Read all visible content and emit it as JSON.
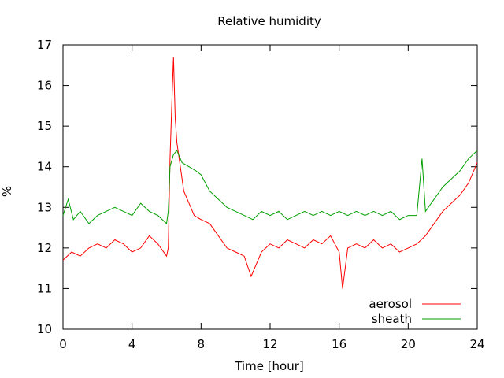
{
  "chart_data": {
    "type": "line",
    "title": "Relative humidity",
    "xlabel": "Time [hour]",
    "ylabel": "%",
    "xlim": [
      0,
      24
    ],
    "ylim": [
      10,
      17
    ],
    "xticks": [
      "0",
      "4",
      "8",
      "12",
      "16",
      "20",
      "24"
    ],
    "yticks": [
      "10",
      "11",
      "12",
      "13",
      "14",
      "15",
      "16",
      "17"
    ],
    "grid": false,
    "legend_position": "bottom-right",
    "series": [
      {
        "name": "aerosol",
        "color": "#ff0000",
        "x": [
          0.0,
          0.5,
          1.0,
          1.5,
          2.0,
          2.5,
          3.0,
          3.5,
          4.0,
          4.5,
          5.0,
          5.5,
          6.0,
          6.1,
          6.2,
          6.3,
          6.4,
          6.5,
          6.6,
          6.8,
          7.0,
          7.3,
          7.6,
          8.0,
          8.5,
          9.0,
          9.5,
          10.0,
          10.5,
          10.9,
          11.5,
          12.0,
          12.5,
          13.0,
          13.5,
          14.0,
          14.5,
          15.0,
          15.5,
          16.0,
          16.2,
          16.5,
          17.0,
          17.5,
          18.0,
          18.5,
          19.0,
          19.5,
          20.0,
          20.5,
          21.0,
          21.5,
          22.0,
          22.5,
          23.0,
          23.5,
          24.0
        ],
        "values": [
          11.7,
          11.9,
          11.8,
          12.0,
          12.1,
          12.0,
          12.2,
          12.1,
          11.9,
          12.0,
          12.3,
          12.1,
          11.8,
          12.0,
          14.2,
          15.5,
          16.7,
          15.2,
          14.6,
          14.0,
          13.4,
          13.1,
          12.8,
          12.7,
          12.6,
          12.3,
          12.0,
          11.9,
          11.8,
          11.3,
          11.9,
          12.1,
          12.0,
          12.2,
          12.1,
          12.0,
          12.2,
          12.1,
          12.3,
          11.9,
          11.0,
          12.0,
          12.1,
          12.0,
          12.2,
          12.0,
          12.1,
          11.9,
          12.0,
          12.1,
          12.3,
          12.6,
          12.9,
          13.1,
          13.3,
          13.6,
          14.1
        ]
      },
      {
        "name": "sheath",
        "color": "#00a000",
        "x": [
          0.0,
          0.3,
          0.6,
          1.0,
          1.5,
          2.0,
          2.5,
          3.0,
          3.5,
          4.0,
          4.5,
          5.0,
          5.5,
          6.0,
          6.1,
          6.2,
          6.4,
          6.6,
          6.9,
          7.3,
          7.7,
          8.0,
          8.5,
          9.0,
          9.5,
          10.0,
          10.5,
          11.0,
          11.5,
          12.0,
          12.5,
          13.0,
          13.5,
          14.0,
          14.5,
          15.0,
          15.5,
          16.0,
          16.5,
          17.0,
          17.5,
          18.0,
          18.5,
          19.0,
          19.5,
          20.0,
          20.5,
          20.8,
          21.0,
          21.5,
          22.0,
          22.5,
          23.0,
          23.5,
          24.0
        ],
        "values": [
          12.8,
          13.2,
          12.7,
          12.9,
          12.6,
          12.8,
          12.9,
          13.0,
          12.9,
          12.8,
          13.1,
          12.9,
          12.8,
          12.6,
          12.9,
          14.0,
          14.3,
          14.4,
          14.1,
          14.0,
          13.9,
          13.8,
          13.4,
          13.2,
          13.0,
          12.9,
          12.8,
          12.7,
          12.9,
          12.8,
          12.9,
          12.7,
          12.8,
          12.9,
          12.8,
          12.9,
          12.8,
          12.9,
          12.8,
          12.9,
          12.8,
          12.9,
          12.8,
          12.9,
          12.7,
          12.8,
          12.8,
          14.2,
          12.9,
          13.2,
          13.5,
          13.7,
          13.9,
          14.2,
          14.4
        ]
      }
    ]
  }
}
